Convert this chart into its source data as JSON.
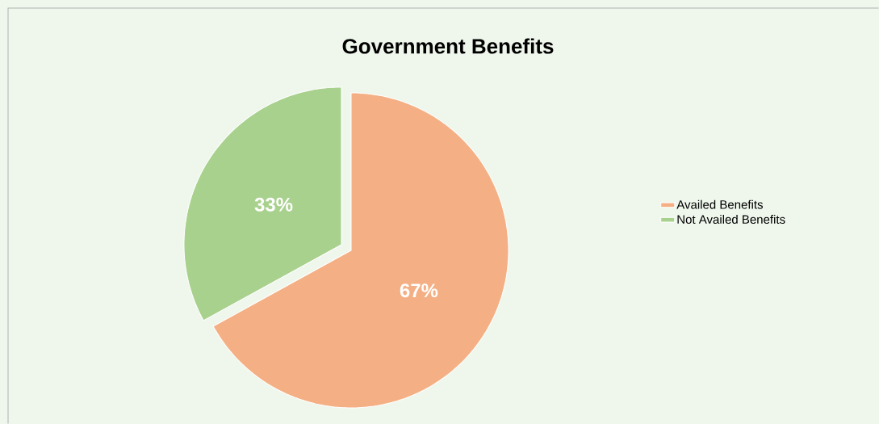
{
  "chart_data": {
    "type": "pie",
    "title": "Government Benefits",
    "categories": [
      "Availed Benefits",
      "Not Availed Benefits"
    ],
    "values": [
      67,
      33
    ],
    "colors": [
      "#f4b084",
      "#a9d18e"
    ],
    "value_labels": [
      "67%",
      "33%"
    ],
    "legend": "right"
  }
}
